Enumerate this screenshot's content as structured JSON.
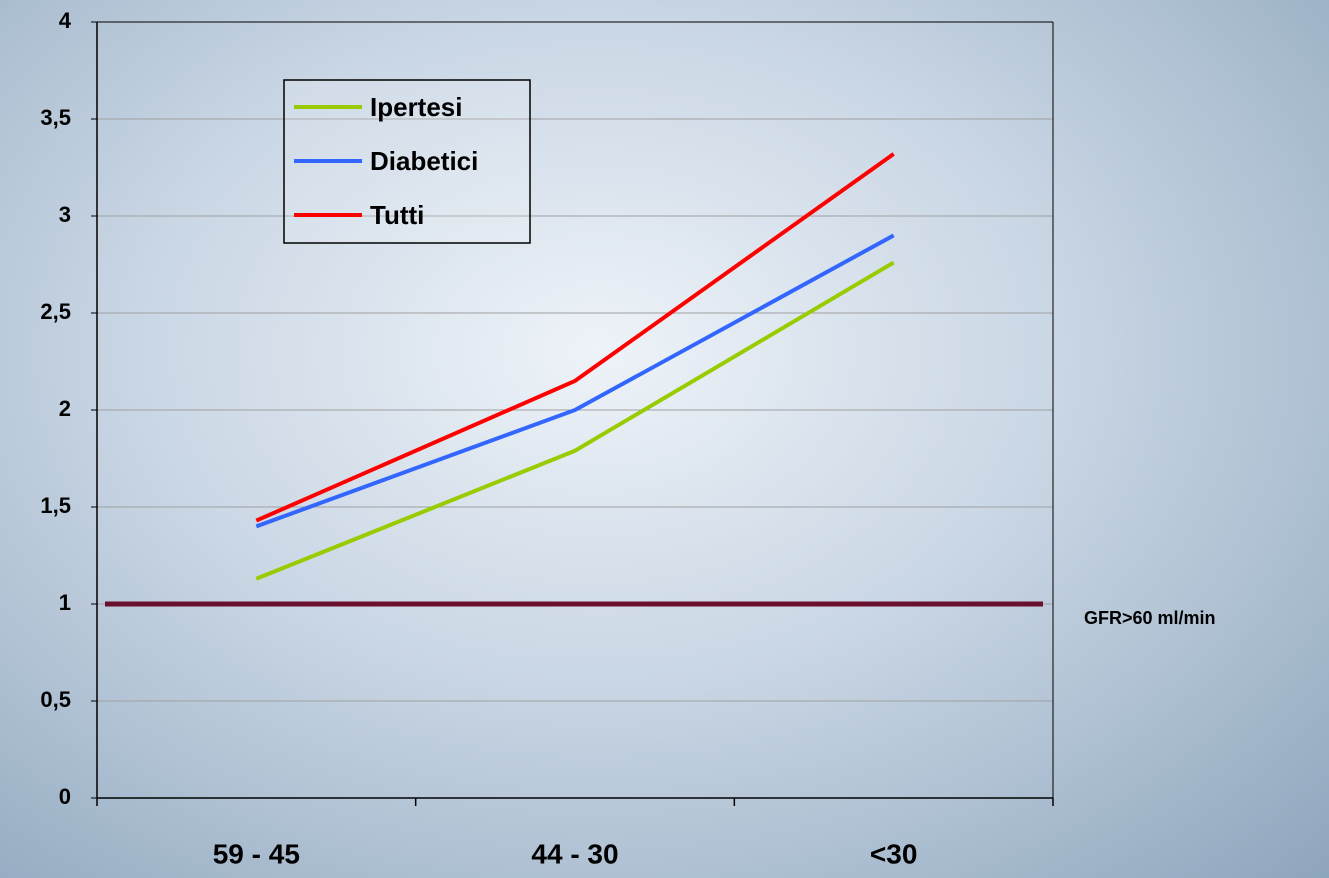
{
  "chart_data": {
    "type": "line",
    "categories": [
      "59 - 45",
      "44 - 30",
      "<30"
    ],
    "series": [
      {
        "name": "Ipertesi",
        "color": "#99cc00",
        "values": [
          1.13,
          1.79,
          2.76
        ]
      },
      {
        "name": "Diabetici",
        "color": "#3366ff",
        "values": [
          1.4,
          2.0,
          2.9
        ]
      },
      {
        "name": "Tutti",
        "color": "#ff0000",
        "values": [
          1.43,
          2.15,
          3.32
        ]
      }
    ],
    "ylim": [
      0,
      4
    ],
    "yticks": [
      0,
      {
        "value": 0.5,
        "label": "0,5"
      },
      1,
      {
        "value": 1.5,
        "label": "1,5"
      },
      2,
      {
        "value": 2.5,
        "label": "2,5"
      },
      3,
      {
        "value": 3.5,
        "label": "3,5"
      },
      4
    ],
    "grid": true,
    "reference_line": {
      "value": 1,
      "label": "GFR>60 ml/min",
      "color": "#6b0f2f"
    }
  }
}
